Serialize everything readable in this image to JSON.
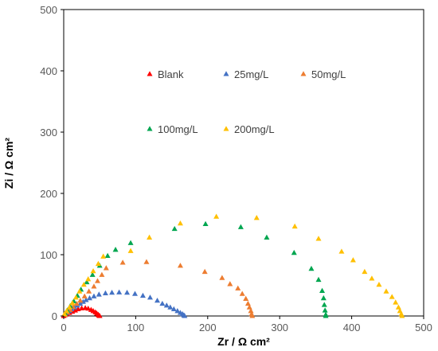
{
  "chart_data": {
    "type": "scatter",
    "title": "",
    "xlabel": "Zr / Ω cm²",
    "ylabel": "Zi / Ω cm²",
    "xlim": [
      0,
      500
    ],
    "ylim": [
      0,
      500
    ],
    "xticks": [
      "0",
      "100",
      "200",
      "300",
      "400",
      "500"
    ],
    "yticks": [
      "0",
      "100",
      "200",
      "300",
      "400",
      "500"
    ],
    "grid": false,
    "legend_position": "inside-top-center",
    "marker": "triangle",
    "series": [
      {
        "name": "Blank",
        "color": "#ff0000",
        "points": [
          [
            0,
            0
          ],
          [
            2,
            1.5
          ],
          [
            5,
            3
          ],
          [
            8,
            5
          ],
          [
            12,
            7
          ],
          [
            16,
            9
          ],
          [
            20,
            11
          ],
          [
            25,
            12.5
          ],
          [
            30,
            13
          ],
          [
            34,
            12
          ],
          [
            38,
            10
          ],
          [
            41,
            8
          ],
          [
            44,
            6
          ],
          [
            46,
            4
          ],
          [
            48,
            2
          ],
          [
            49,
            0.5
          ],
          [
            50,
            0
          ]
        ]
      },
      {
        "name": "25mg/L",
        "color": "#4472c4",
        "points": [
          [
            2,
            2
          ],
          [
            5,
            5
          ],
          [
            8,
            8
          ],
          [
            11,
            11
          ],
          [
            15,
            14
          ],
          [
            19,
            17
          ],
          [
            23,
            20
          ],
          [
            27,
            23
          ],
          [
            31,
            26
          ],
          [
            36,
            29
          ],
          [
            42,
            32
          ],
          [
            49,
            35
          ],
          [
            58,
            37
          ],
          [
            67,
            38
          ],
          [
            77,
            38.5
          ],
          [
            88,
            38
          ],
          [
            99,
            36
          ],
          [
            110,
            33
          ],
          [
            120,
            30
          ],
          [
            130,
            25
          ],
          [
            137,
            20
          ],
          [
            143,
            17
          ],
          [
            148,
            14
          ],
          [
            153,
            11
          ],
          [
            158,
            8
          ],
          [
            162,
            5
          ],
          [
            165,
            3
          ],
          [
            167,
            1
          ],
          [
            168,
            0
          ]
        ]
      },
      {
        "name": "50mg/L",
        "color": "#ed7d31",
        "points": [
          [
            2,
            2
          ],
          [
            5,
            6
          ],
          [
            9,
            10
          ],
          [
            13,
            15
          ],
          [
            18,
            20
          ],
          [
            23,
            25
          ],
          [
            29,
            32
          ],
          [
            35,
            40
          ],
          [
            42,
            48
          ],
          [
            47,
            57
          ],
          [
            53,
            67
          ],
          [
            59,
            78
          ],
          [
            82,
            87
          ],
          [
            115,
            88
          ],
          [
            162,
            82
          ],
          [
            196,
            72
          ],
          [
            220,
            62
          ],
          [
            231,
            52
          ],
          [
            242,
            45
          ],
          [
            248,
            36
          ],
          [
            253,
            28
          ],
          [
            256,
            20
          ],
          [
            258,
            14
          ],
          [
            260,
            8
          ],
          [
            261,
            3
          ],
          [
            262,
            0
          ]
        ]
      },
      {
        "name": "100mg/L",
        "color": "#00a650",
        "points": [
          [
            2,
            4
          ],
          [
            5,
            9
          ],
          [
            9,
            16
          ],
          [
            14,
            24
          ],
          [
            19,
            33
          ],
          [
            24,
            43
          ],
          [
            32,
            55
          ],
          [
            40,
            67
          ],
          [
            50,
            82
          ],
          [
            61,
            98
          ],
          [
            72,
            108
          ],
          [
            93,
            119
          ],
          [
            154,
            142
          ],
          [
            197,
            150
          ],
          [
            246,
            145
          ],
          [
            282,
            128
          ],
          [
            320,
            103
          ],
          [
            344,
            77
          ],
          [
            354,
            59
          ],
          [
            359,
            41
          ],
          [
            361,
            29
          ],
          [
            362,
            18
          ],
          [
            363,
            9
          ],
          [
            364,
            2
          ],
          [
            364,
            0
          ]
        ]
      },
      {
        "name": "200mg/L",
        "color": "#ffc000",
        "points": [
          [
            1,
            3
          ],
          [
            4,
            8
          ],
          [
            8,
            14
          ],
          [
            12,
            21
          ],
          [
            17,
            30
          ],
          [
            22,
            40
          ],
          [
            28,
            51
          ],
          [
            34,
            60
          ],
          [
            41,
            73
          ],
          [
            48,
            85
          ],
          [
            55,
            97
          ],
          [
            93,
            106
          ],
          [
            119,
            128
          ],
          [
            162,
            151
          ],
          [
            212,
            162
          ],
          [
            268,
            160
          ],
          [
            321,
            146
          ],
          [
            354,
            126
          ],
          [
            386,
            105
          ],
          [
            402,
            91
          ],
          [
            418,
            72
          ],
          [
            428,
            61
          ],
          [
            438,
            51
          ],
          [
            448,
            40
          ],
          [
            456,
            31
          ],
          [
            461,
            22
          ],
          [
            465,
            14
          ],
          [
            467,
            8
          ],
          [
            469,
            3
          ],
          [
            470,
            0
          ]
        ]
      }
    ]
  }
}
